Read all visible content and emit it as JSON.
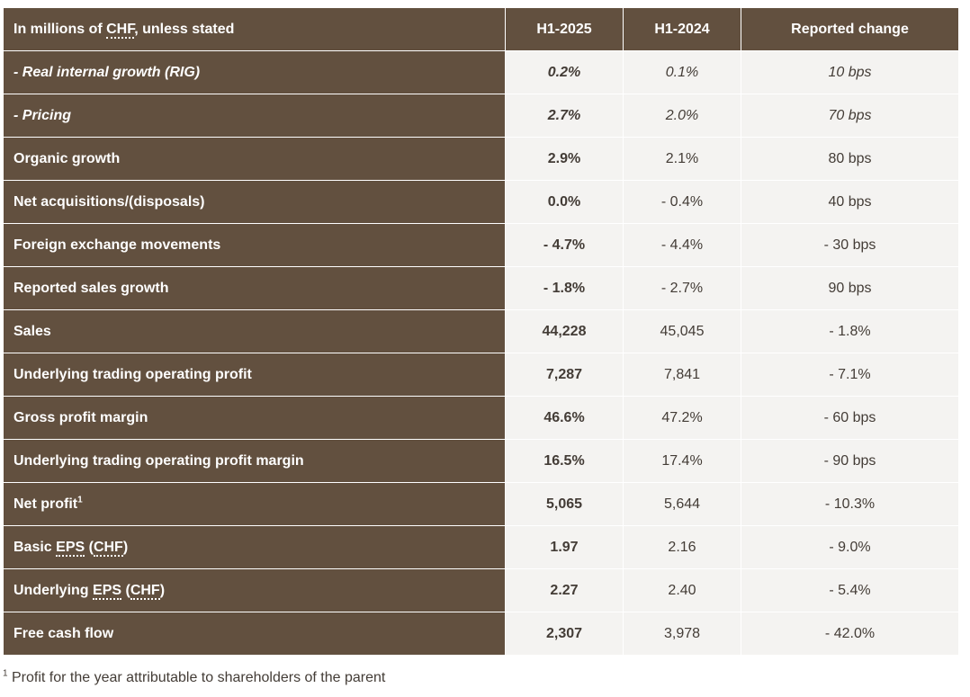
{
  "header": {
    "label_prefix": "In millions of ",
    "label_abbr": "CHF",
    "label_suffix": ", unless stated",
    "col1": "H1-2025",
    "col2": "H1-2024",
    "col3": "Reported change"
  },
  "rows": [
    {
      "label": "- Real internal growth (RIG)",
      "h2025": "0.2%",
      "h2024": "0.1%",
      "change": "10 bps"
    },
    {
      "label": "- Pricing",
      "h2025": "2.7%",
      "h2024": "2.0%",
      "change": "70 bps"
    },
    {
      "label": "Organic growth",
      "h2025": "2.9%",
      "h2024": "2.1%",
      "change": "80 bps"
    },
    {
      "label": "Net acquisitions/(disposals)",
      "h2025": "0.0%",
      "h2024": "- 0.4%",
      "change": "40 bps"
    },
    {
      "label": "Foreign exchange movements",
      "h2025": "- 4.7%",
      "h2024": "- 4.4%",
      "change": "- 30 bps"
    },
    {
      "label": "Reported sales growth",
      "h2025": "- 1.8%",
      "h2024": "- 2.7%",
      "change": "90 bps"
    },
    {
      "label": "Sales",
      "h2025": "44,228",
      "h2024": "45,045",
      "change": "- 1.8%"
    },
    {
      "label": "Underlying trading operating profit",
      "h2025": "7,287",
      "h2024": "7,841",
      "change": "- 7.1%"
    },
    {
      "label": "Gross profit margin",
      "h2025": "46.6%",
      "h2024": "47.2%",
      "change": "- 60 bps"
    },
    {
      "label": "Underlying trading operating profit margin",
      "h2025": "16.5%",
      "h2024": "17.4%",
      "change": "- 90 bps"
    },
    {
      "label": "Net profit",
      "label_sup": "1",
      "h2025": "5,065",
      "h2024": "5,644",
      "change": "- 10.3%"
    },
    {
      "label_pre": "Basic ",
      "label_abbr1": "EPS",
      "label_mid": " (",
      "label_abbr2": "CHF",
      "label_post": ")",
      "h2025": "1.97",
      "h2024": "2.16",
      "change": "- 9.0%"
    },
    {
      "label_pre": "Underlying ",
      "label_abbr1": "EPS",
      "label_mid": " (",
      "label_abbr2": "CHF",
      "label_post": ")",
      "h2025": "2.27",
      "h2024": "2.40",
      "change": "- 5.4%"
    },
    {
      "label": "Free cash flow",
      "h2025": "2,307",
      "h2024": "3,978",
      "change": "- 42.0%"
    }
  ],
  "footnote": {
    "marker": "1",
    "text": " Profit for the year attributable to shareholders of the parent"
  }
}
